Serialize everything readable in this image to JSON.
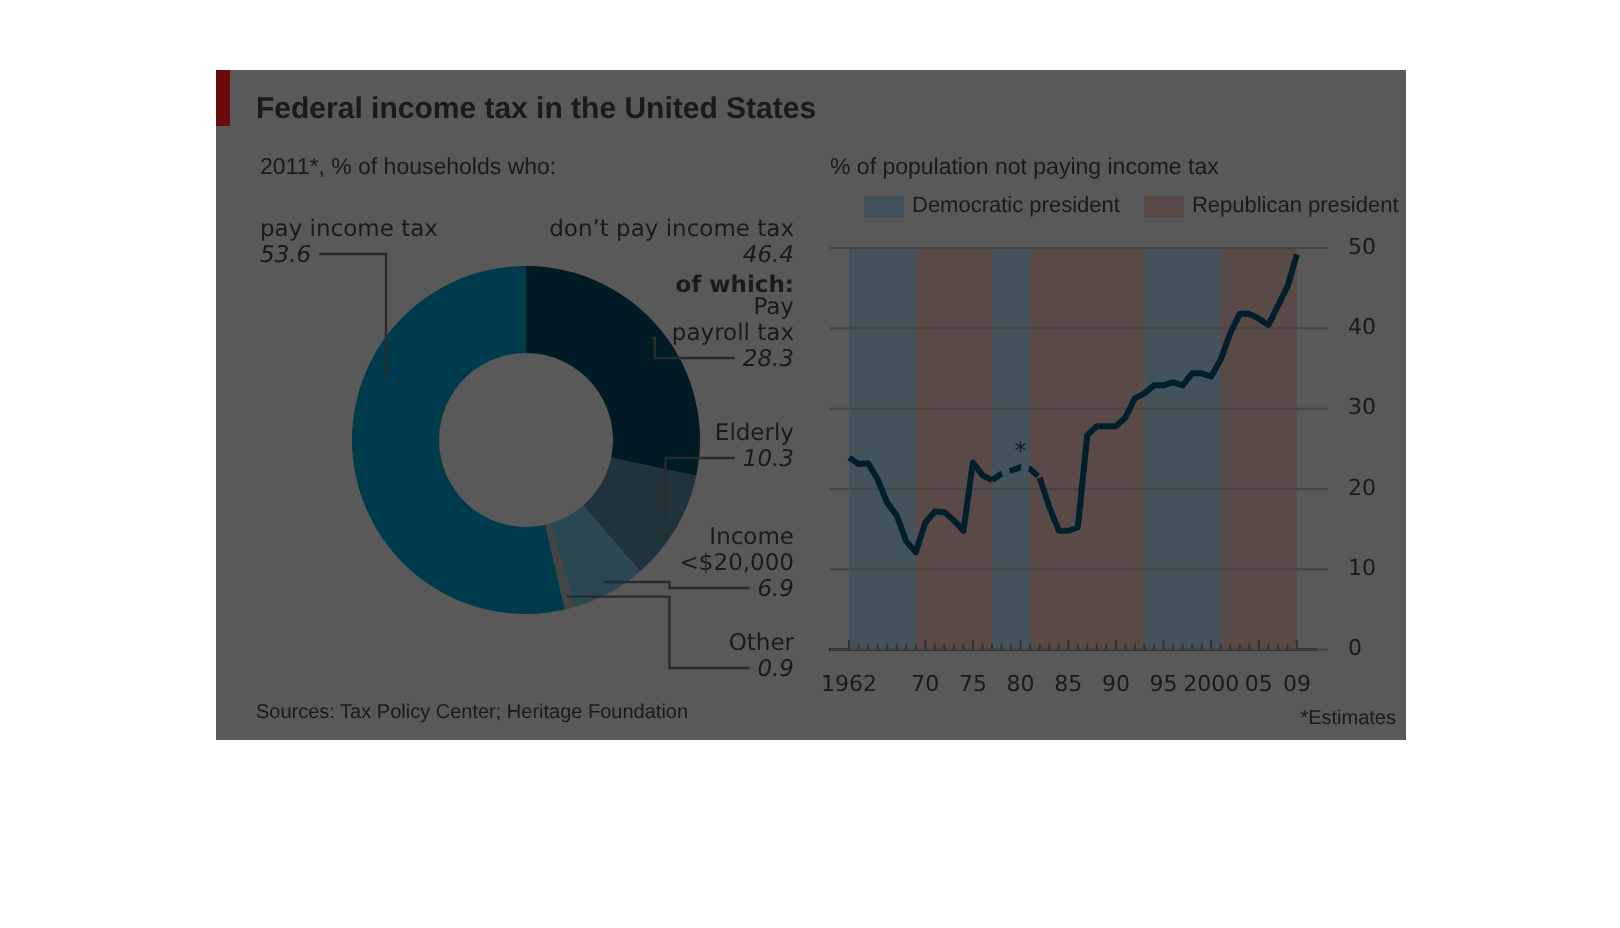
{
  "chart_data": [
    {
      "type": "donut",
      "title": "Federal income tax in the United States",
      "subtitle": "2011*, % of households who:",
      "categories": [
        "pay income tax",
        "Pay payroll tax",
        "Elderly",
        "Income <$20,000",
        "Other"
      ],
      "values": [
        53.6,
        28.3,
        10.3,
        6.9,
        0.9
      ],
      "colors": [
        "#003a4d",
        "#001b24",
        "#20323a",
        "#2a4752",
        "#444444"
      ],
      "data_labels": true,
      "annotations": [
        "don’t pay income tax",
        "46.4",
        "of which:",
        "Sources: Tax Policy Center; Heritage Foundation"
      ]
    },
    {
      "type": "line",
      "title": "% of population not paying income tax",
      "legend": "top",
      "series": [
        {
          "type": "line",
          "color": "#001f2a",
          "line_style": "solid",
          "x": [
            1962,
            1963,
            1964,
            1965,
            1966,
            1967,
            1968,
            1969,
            1970,
            1971,
            1972,
            1973,
            1974,
            1975,
            1976,
            1977,
            1978,
            1979,
            1980,
            1981,
            1982,
            1983,
            1984,
            1985,
            1986,
            1987,
            1988,
            1989,
            1990,
            1991,
            1992,
            1993,
            1994,
            1995,
            1996,
            1997,
            1998,
            1999,
            2000,
            2001,
            2002,
            2003,
            2004,
            2005,
            2006,
            2007,
            2008,
            2009
          ],
          "values": [
            23.9,
            23.1,
            23.2,
            21.2,
            18.3,
            16.7,
            13.5,
            12.1,
            15.8,
            17.2,
            17.1,
            16.1,
            14.8,
            23.3,
            21.7,
            21.1,
            null,
            null,
            null,
            null,
            21.4,
            17.8,
            14.8,
            14.8,
            15.2,
            26.7,
            27.8,
            27.8,
            27.8,
            28.9,
            31.3,
            31.9,
            32.9,
            32.9,
            33.3,
            32.9,
            34.4,
            34.4,
            34.0,
            36.1,
            39.4,
            41.8,
            41.8,
            41.2,
            40.4,
            42.8,
            45.2,
            49.2
          ]
        },
        {
          "type": "line",
          "color": "#001f2a",
          "line_style": "dashed",
          "x": [
            1977,
            1978,
            1979,
            1980,
            1981,
            1982
          ],
          "values": [
            21.1,
            21.9,
            22.3,
            22.7,
            22.5,
            21.4
          ]
        }
      ],
      "xlim": [
        1960,
        2011
      ],
      "xticks": [
        {
          "value": 1962,
          "label": "1962"
        },
        {
          "value": 1963,
          "label": null
        },
        {
          "value": 1964,
          "label": null
        },
        {
          "value": 1965,
          "label": null
        },
        {
          "value": 1966,
          "label": null
        },
        {
          "value": 1967,
          "label": null
        },
        {
          "value": 1968,
          "label": null
        },
        {
          "value": 1969,
          "label": null
        },
        {
          "value": 1970,
          "label": "70"
        },
        {
          "value": 1971,
          "label": null
        },
        {
          "value": 1972,
          "label": null
        },
        {
          "value": 1973,
          "label": null
        },
        {
          "value": 1974,
          "label": null
        },
        {
          "value": 1975,
          "label": "75"
        },
        {
          "value": 1976,
          "label": null
        },
        {
          "value": 1977,
          "label": null
        },
        {
          "value": 1978,
          "label": null
        },
        {
          "value": 1979,
          "label": null
        },
        {
          "value": 1980,
          "label": "80"
        },
        {
          "value": 1981,
          "label": null
        },
        {
          "value": 1982,
          "label": null
        },
        {
          "value": 1983,
          "label": null
        },
        {
          "value": 1984,
          "label": null
        },
        {
          "value": 1985,
          "label": "85"
        },
        {
          "value": 1986,
          "label": null
        },
        {
          "value": 1987,
          "label": null
        },
        {
          "value": 1988,
          "label": null
        },
        {
          "value": 1989,
          "label": null
        },
        {
          "value": 1990,
          "label": "90"
        },
        {
          "value": 1991,
          "label": null
        },
        {
          "value": 1992,
          "label": null
        },
        {
          "value": 1993,
          "label": null
        },
        {
          "value": 1994,
          "label": null
        },
        {
          "value": 1995,
          "label": "95"
        },
        {
          "value": 1996,
          "label": null
        },
        {
          "value": 1997,
          "label": null
        },
        {
          "value": 1998,
          "label": null
        },
        {
          "value": 1999,
          "label": null
        },
        {
          "value": 2000,
          "label": "2000"
        },
        {
          "value": 2001,
          "label": null
        },
        {
          "value": 2002,
          "label": null
        },
        {
          "value": 2003,
          "label": null
        },
        {
          "value": 2004,
          "label": null
        },
        {
          "value": 2005,
          "label": "05"
        },
        {
          "value": 2006,
          "label": null
        },
        {
          "value": 2007,
          "label": null
        },
        {
          "value": 2008,
          "label": null
        },
        {
          "value": 2009,
          "label": "09"
        }
      ],
      "ylim": [
        0,
        50
      ],
      "yticks": [
        0,
        10,
        20,
        30,
        40,
        50
      ],
      "grid": "y",
      "bands": [
        {
          "axis": "x",
          "from": 1962,
          "to": 1969,
          "label": "Democratic president",
          "color": "#44535b"
        },
        {
          "axis": "x",
          "from": 1969,
          "to": 1977,
          "label": "Republican president",
          "color": "#5a4a47"
        },
        {
          "axis": "x",
          "from": 1977,
          "to": 1981,
          "color": "#44535b"
        },
        {
          "axis": "x",
          "from": 1981,
          "to": 1993,
          "color": "#5a4a47"
        },
        {
          "axis": "x",
          "from": 1993,
          "to": 2001,
          "color": "#44535b"
        },
        {
          "axis": "x",
          "from": 2001,
          "to": 2009,
          "color": "#5a4a47"
        }
      ],
      "annotations": [
        {
          "text": "*",
          "x": 1980,
          "y": 22.7
        },
        "*Estimates"
      ]
    }
  ]
}
